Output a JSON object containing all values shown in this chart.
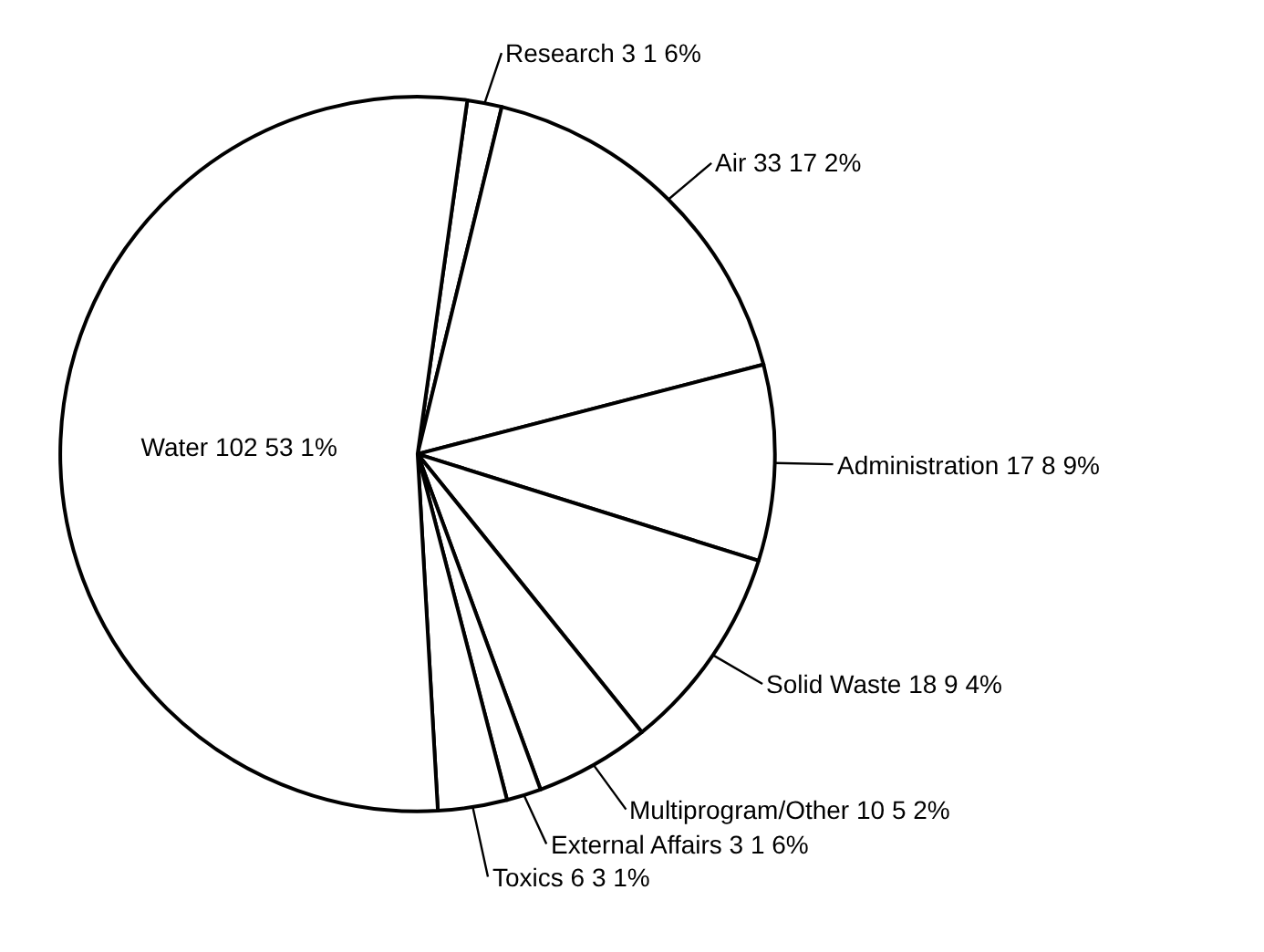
{
  "chart_data": {
    "type": "pie",
    "categories": [
      "Research",
      "Air",
      "Administration",
      "Solid Waste",
      "Multiprogram/Other",
      "External Affairs",
      "Toxics",
      "Water"
    ],
    "values": [
      3,
      33,
      17,
      18,
      10,
      3,
      6,
      102
    ],
    "value_labels": [
      "3 1 6%",
      "33 17 2%",
      "17 8 9%",
      "18 9 4%",
      "10 5 2%",
      "3 1 6%",
      "6 3 1%",
      "102 53 1%"
    ],
    "colors": [
      "#ffffff",
      "#ffffff",
      "#ffffff",
      "#ffffff",
      "#ffffff",
      "#ffffff",
      "#ffffff",
      "#ffffff"
    ],
    "legend": false
  }
}
